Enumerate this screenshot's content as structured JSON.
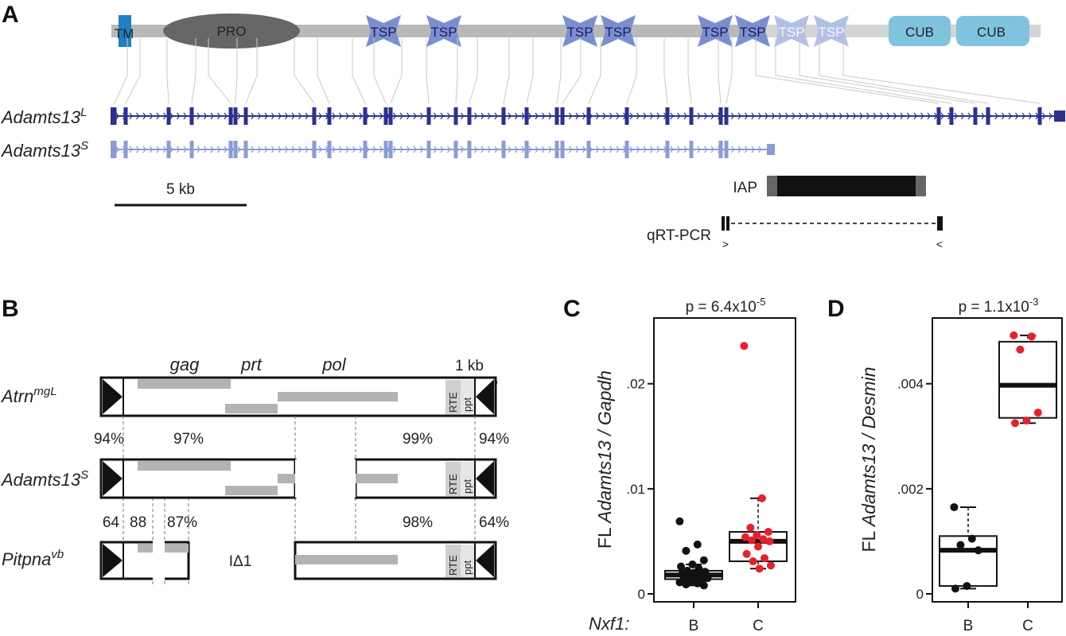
{
  "panels": {
    "a": "A",
    "b": "B",
    "c": "C",
    "d": "D"
  },
  "panelA": {
    "domains": [
      "TM",
      "PRO",
      "TSP",
      "TSP",
      "TSP",
      "TSP",
      "TSP",
      "TSP",
      "TSP",
      "TSP",
      "CUB",
      "CUB"
    ],
    "gene_long": "Adamts13",
    "gene_long_sup": "L",
    "gene_short": "Adamts13",
    "gene_short_sup": "S",
    "scalebar": "5 kb",
    "iap": "IAP",
    "qrt": "qRT-PCR",
    "primer_fwd": ">",
    "primer_rev": "<"
  },
  "panelB": {
    "scalebar": "1 kb",
    "gag": "gag",
    "prt": "prt",
    "pol": "pol",
    "row1_name": "Atrn",
    "row1_sup": "mgL",
    "row2_name": "Adamts13",
    "row2_sup": "S",
    "row3_name": "Pitpna",
    "row3_sup": "vb",
    "rte": "RTE",
    "ppt": "ppt",
    "pct_row1": [
      "94%",
      "97%",
      "99%",
      "94%"
    ],
    "pct_row2": [
      "64",
      "88",
      "87%",
      "98%",
      "64%"
    ],
    "deletion": "IΔ1"
  },
  "panelC": {
    "pvalue_base": "p = 6.4x10",
    "pvalue_exp": "-5",
    "ylabel_prefix": "FL ",
    "ylabel_italic": "Adamts13 / Gapdh",
    "yticks": [
      "0",
      ".01",
      ".02"
    ],
    "xlabel": "Nxf1:",
    "groups": [
      "B",
      "C"
    ]
  },
  "panelD": {
    "pvalue_base": "p = 1.1x10",
    "pvalue_exp": "-3",
    "ylabel_prefix": "FL ",
    "ylabel_italic": "Adamts13 / Desmin",
    "yticks": [
      "0",
      ".002",
      ".004"
    ],
    "groups": [
      "B",
      "C"
    ]
  },
  "colors": {
    "exon_long": "#2b3190",
    "exon_short": "#8b9bd6",
    "tsp_dark": "#7b8fd0",
    "tsp_light": "#b3c0e6",
    "cub": "#7fc3df",
    "tm": "#1f7fc4",
    "red_points": "#e8202a",
    "black_points": "#111111"
  },
  "chart_data": [
    {
      "type": "box",
      "ylabel": "FL Adamts13 / Gapdh",
      "xlabel": "Nxf1:",
      "categories": [
        "B",
        "C"
      ],
      "ylim": [
        0,
        0.0255
      ],
      "boxes": [
        {
          "name": "B",
          "min": 0.0008,
          "q1": 0.0014,
          "median": 0.0018,
          "q3": 0.0022,
          "max": 0.0028
        },
        {
          "name": "C",
          "min": 0.0024,
          "q1": 0.0031,
          "median": 0.005,
          "q3": 0.0059,
          "max": 0.0091
        }
      ],
      "points": {
        "B": [
          0.0069,
          0.0047,
          0.0041,
          0.0032,
          0.0028,
          0.0026,
          0.0024,
          0.0022,
          0.0021,
          0.002,
          0.0019,
          0.0019,
          0.0018,
          0.0018,
          0.0017,
          0.0017,
          0.0016,
          0.0016,
          0.0015,
          0.0015,
          0.0014,
          0.0013,
          0.0012,
          0.0011,
          0.001,
          0.0009,
          0.0008
        ],
        "C": [
          0.0236,
          0.0091,
          0.0063,
          0.0059,
          0.0056,
          0.0054,
          0.0052,
          0.0051,
          0.005,
          0.0045,
          0.0038,
          0.0034,
          0.0031,
          0.0027,
          0.0024
        ]
      }
    },
    {
      "type": "box",
      "ylabel": "FL Adamts13 / Desmin",
      "categories": [
        "B",
        "C"
      ],
      "ylim": [
        0,
        0.0051
      ],
      "boxes": [
        {
          "name": "B",
          "min": 0.0001,
          "q1": 0.00015,
          "median": 0.00083,
          "q3": 0.0011,
          "max": 0.00165
        },
        {
          "name": "C",
          "min": 0.00325,
          "q1": 0.00335,
          "median": 0.00397,
          "q3": 0.0048,
          "max": 0.00492
        }
      ],
      "points": {
        "B": [
          0.00165,
          0.00105,
          0.00093,
          0.00083,
          0.00015,
          0.0001
        ],
        "C": [
          0.00492,
          0.0049,
          0.00465,
          0.00345,
          0.0033,
          0.00325
        ]
      }
    }
  ]
}
